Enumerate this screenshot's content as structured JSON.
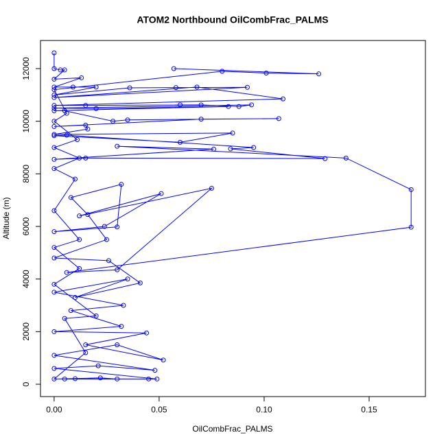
{
  "chart_data": {
    "type": "line",
    "title": "ATOM2 Northbound OilCombFrac_PALMS",
    "x_label": "OilCombFrac_PALMS",
    "y_label": "Altitude (m)",
    "x": [
      0,
      0,
      0.003,
      0.005,
      0,
      0.013,
      0,
      0.009,
      0.02,
      0,
      0.036,
      0.058,
      0.092,
      0,
      0.068,
      0.109,
      0,
      0.015,
      0.06,
      0.07,
      0.088,
      0.094,
      0,
      0.02,
      0.083,
      0,
      0.005,
      0.028,
      0.035,
      0.107,
      0.07,
      0,
      0.015,
      0.016,
      0,
      0.085,
      0.06,
      0,
      0.006,
      0.095,
      0.084,
      0.129,
      0.015,
      0,
      0.076,
      0.03,
      0.139,
      0.17,
      0.17,
      0.006,
      0.03,
      0.075,
      0.012,
      0.051,
      0.024,
      0,
      0.03,
      0.032,
      0.008,
      0.016,
      0.025,
      0,
      0.026,
      0.041,
      0.01,
      0.035,
      0,
      0.033,
      0.008,
      0.032,
      0,
      0.044,
      0.015,
      0.052,
      0.03,
      0,
      0.048,
      0.021,
      0,
      0.049,
      0.045,
      0.01,
      0.005,
      0.03,
      0.022,
      0,
      0.015,
      0.005,
      0.02,
      0,
      0.012,
      0,
      0.012,
      0,
      0.01,
      0,
      0.012,
      0,
      0.011,
      0,
      0.006,
      0,
      0.08,
      0.101,
      0.126,
      0.057
    ],
    "series": [
      {
        "color": "#0000ff",
        "values": [
          12600,
          12000,
          11950,
          11950,
          11600,
          11650,
          11300,
          11300,
          11300,
          11000,
          11270,
          11280,
          11290,
          10900,
          11300,
          10850,
          10600,
          10600,
          10620,
          10620,
          10560,
          10620,
          10500,
          10480,
          10560,
          10400,
          10400,
          10000,
          10050,
          10100,
          10080,
          9800,
          9850,
          9700,
          9500,
          9550,
          9200,
          9450,
          9470,
          9000,
          8950,
          8580,
          8600,
          8550,
          8940,
          9050,
          8600,
          7400,
          5970,
          4250,
          4350,
          7450,
          6400,
          7250,
          6000,
          5800,
          5980,
          7600,
          7100,
          6450,
          5500,
          4800,
          4700,
          3850,
          3300,
          4000,
          3500,
          3000,
          2800,
          2200,
          2000,
          1950,
          1500,
          920,
          1500,
          1100,
          530,
          700,
          600,
          200,
          200,
          210,
          200,
          200,
          240,
          200,
          1200,
          2500,
          2600,
          3800,
          4400,
          5200,
          5500,
          6600,
          7800,
          8200,
          8600,
          9000,
          9300,
          10000,
          10300,
          11200,
          11900,
          11830,
          11800,
          12000
        ]
      }
    ],
    "xlim": [
      -0.0065,
      0.1768
    ],
    "ylim": [
      -470,
      13070
    ],
    "xticks": [
      {
        "value": 0,
        "label": "0.00"
      },
      {
        "value": 0.05,
        "label": "0.05"
      },
      {
        "value": 0.1,
        "label": "0.10"
      },
      {
        "value": 0.15,
        "label": "0.15"
      }
    ],
    "yticks": [
      0,
      2000,
      4000,
      6000,
      8000,
      10000,
      12000
    ]
  }
}
